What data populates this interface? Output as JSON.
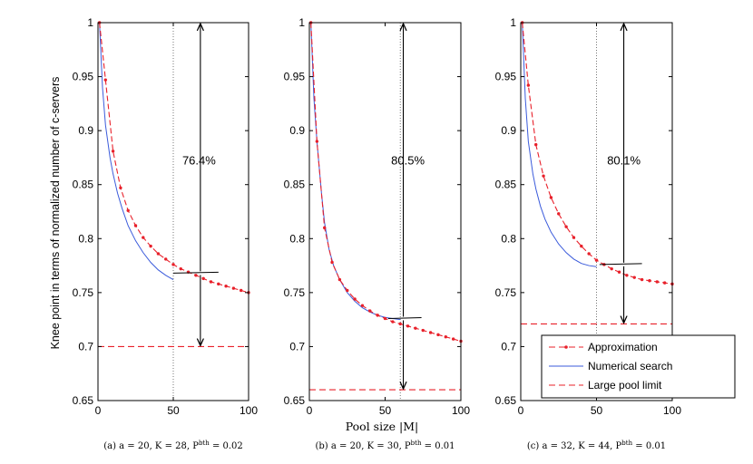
{
  "figure": {
    "ylabel": "Knee point in terms of normalized number of c-servers",
    "xlabel": "Pool size |M|"
  },
  "legend": {
    "approx_label": "Approximation",
    "numerical_label": "Numerical search",
    "limit_label": "Large pool limit"
  },
  "colors": {
    "approx": "#e8202a",
    "numerical": "#3b5bdb",
    "limit": "#e8202a",
    "text": "#000000"
  },
  "chart_data": [
    {
      "type": "line",
      "caption": "(a) a = 20, K = 28, P^bth = 0.02",
      "xlim": [
        0,
        100
      ],
      "ylim": [
        0.65,
        1
      ],
      "xticks": [
        0,
        50,
        100
      ],
      "yticks": [
        0.65,
        0.7,
        0.75,
        0.8,
        0.85,
        0.9,
        0.95,
        1
      ],
      "yticklabels": [
        "0.65",
        "0.7",
        "0.75",
        "0.8",
        "0.85",
        "0.9",
        "0.95",
        "1"
      ],
      "grid_x": 50,
      "series": [
        {
          "name": "Approximation",
          "x": [
            1,
            5,
            10,
            15,
            20,
            25,
            30,
            35,
            40,
            45,
            50,
            55,
            60,
            65,
            70,
            75,
            80,
            85,
            90,
            95,
            100
          ],
          "y": [
            1.0,
            0.947,
            0.881,
            0.847,
            0.826,
            0.812,
            0.801,
            0.793,
            0.786,
            0.781,
            0.776,
            0.772,
            0.769,
            0.766,
            0.763,
            0.76,
            0.758,
            0.756,
            0.754,
            0.752,
            0.75
          ]
        },
        {
          "name": "Numerical search",
          "x": [
            1,
            3,
            5,
            8,
            10,
            13,
            16,
            20,
            25,
            30,
            35,
            40,
            45,
            50
          ],
          "y": [
            1.0,
            0.94,
            0.905,
            0.875,
            0.86,
            0.842,
            0.828,
            0.812,
            0.798,
            0.787,
            0.778,
            0.771,
            0.766,
            0.762
          ]
        },
        {
          "name": "Large pool limit",
          "y": 0.7
        }
      ],
      "arrow": {
        "x": 68,
        "top": 1.0,
        "bottom": 0.7,
        "tick_y": 0.768,
        "tick_x": [
          50,
          80
        ],
        "label": "76.4%",
        "label_x": 56,
        "label_y": 0.872
      }
    },
    {
      "type": "line",
      "caption": "(b) a = 20, K = 30, P^bth = 0.01",
      "xlim": [
        0,
        100
      ],
      "ylim": [
        0.65,
        1
      ],
      "xticks": [
        0,
        50,
        100
      ],
      "yticks": [
        0.65,
        0.7,
        0.75,
        0.8,
        0.85,
        0.9,
        0.95,
        1
      ],
      "yticklabels": [
        "0.65",
        "0.7",
        "0.75",
        "0.8",
        "0.85",
        "0.9",
        "0.95",
        "1"
      ],
      "grid_x": 60,
      "series": [
        {
          "name": "Approximation",
          "x": [
            1,
            5,
            10,
            15,
            20,
            25,
            30,
            35,
            40,
            45,
            50,
            55,
            60,
            65,
            70,
            75,
            80,
            85,
            90,
            95,
            100
          ],
          "y": [
            1.0,
            0.89,
            0.81,
            0.778,
            0.762,
            0.752,
            0.744,
            0.738,
            0.733,
            0.729,
            0.726,
            0.723,
            0.721,
            0.719,
            0.717,
            0.715,
            0.713,
            0.711,
            0.709,
            0.707,
            0.705
          ]
        },
        {
          "name": "Numerical search",
          "x": [
            1,
            3,
            5,
            8,
            10,
            13,
            16,
            20,
            25,
            30,
            35,
            40,
            45,
            50,
            55,
            60
          ],
          "y": [
            1.0,
            0.93,
            0.89,
            0.842,
            0.815,
            0.79,
            0.775,
            0.762,
            0.75,
            0.742,
            0.736,
            0.732,
            0.729,
            0.727,
            0.726,
            0.725
          ]
        },
        {
          "name": "Large pool limit",
          "y": 0.66
        }
      ],
      "arrow": {
        "x": 62,
        "top": 1.0,
        "bottom": 0.66,
        "tick_y": 0.726,
        "tick_x": [
          52,
          74
        ],
        "label": "80.5%",
        "label_x": 54,
        "label_y": 0.872
      }
    },
    {
      "type": "line",
      "caption": "(c) a = 32, K = 44, P^bth = 0.01",
      "xlim": [
        0,
        100
      ],
      "ylim": [
        0.65,
        1
      ],
      "xticks": [
        0,
        50,
        100
      ],
      "yticks": [
        0.65,
        0.7,
        0.75,
        0.8,
        0.85,
        0.9,
        0.95,
        1
      ],
      "yticklabels": [
        "0.65",
        "0.7",
        "0.75",
        "0.8",
        "0.85",
        "0.9",
        "0.95",
        "1"
      ],
      "grid_x": 50,
      "series": [
        {
          "name": "Approximation",
          "x": [
            1,
            5,
            10,
            15,
            20,
            25,
            30,
            35,
            40,
            45,
            50,
            55,
            60,
            65,
            70,
            75,
            80,
            85,
            90,
            95,
            100
          ],
          "y": [
            1.0,
            0.942,
            0.887,
            0.858,
            0.838,
            0.823,
            0.811,
            0.801,
            0.793,
            0.786,
            0.78,
            0.776,
            0.772,
            0.769,
            0.766,
            0.764,
            0.762,
            0.761,
            0.76,
            0.759,
            0.758
          ]
        },
        {
          "name": "Numerical search",
          "x": [
            1,
            3,
            5,
            8,
            10,
            13,
            16,
            20,
            25,
            30,
            35,
            40,
            45,
            50
          ],
          "y": [
            1.0,
            0.93,
            0.89,
            0.86,
            0.846,
            0.83,
            0.818,
            0.806,
            0.795,
            0.787,
            0.781,
            0.777,
            0.775,
            0.774
          ]
        },
        {
          "name": "Large pool limit",
          "y": 0.721
        }
      ],
      "arrow": {
        "x": 68,
        "top": 1.0,
        "bottom": 0.721,
        "tick_y": 0.776,
        "tick_x": [
          52,
          80
        ],
        "label": "80.1%",
        "label_x": 57,
        "label_y": 0.872
      }
    }
  ]
}
